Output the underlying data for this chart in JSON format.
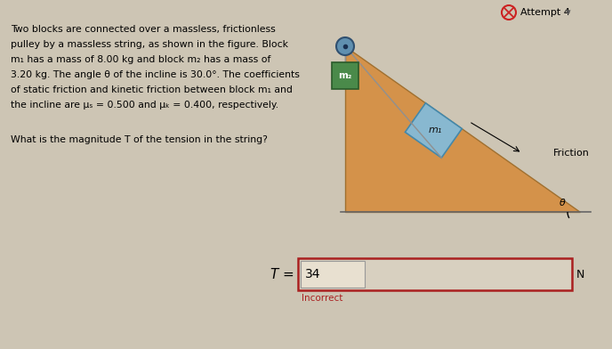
{
  "bg_color": "#cdc5b4",
  "title_attempt": "Attempt 4",
  "body_text_lines": [
    "Two blocks are connected over a massless, frictionless",
    "pulley by a massless string, as shown in the figure. Block",
    "m₁ has a mass of 8.00 kg and block m₂ has a mass of",
    "3.20 kg. The angle θ of the incline is 30.0°. The coefficients",
    "of static friction and kinetic friction between block m₁ and",
    "the incline are μₛ = 0.500 and μₖ = 0.400, respectively."
  ],
  "question_text": "What is the magnitude T of the tension in the string?",
  "incline_color": "#d4924a",
  "incline_edge_color": "#a07030",
  "block1_color": "#88b8d0",
  "block1_edge_color": "#4488aa",
  "block2_color": "#4a8a4a",
  "block2_edge_color": "#2a5a2a",
  "pulley_color": "#6090b0",
  "pulley_edge_color": "#305070",
  "string_color": "#909090",
  "ground_color": "#666666",
  "answer_box_border": "#aa2020",
  "answer_box_bg": "#d8d0c0",
  "inner_box_bg": "#e8e0d0",
  "answer_value": "34",
  "answer_unit": "N",
  "answer_label_italic": "T",
  "incorrect_text": "Incorrect",
  "friction_label": "Friction",
  "theta_label": "θ",
  "m1_label": "m₁",
  "m2_label": "m₂",
  "attempt_color": "#cc2222",
  "fig_width": 6.88,
  "fig_height": 3.92,
  "dpi": 100
}
